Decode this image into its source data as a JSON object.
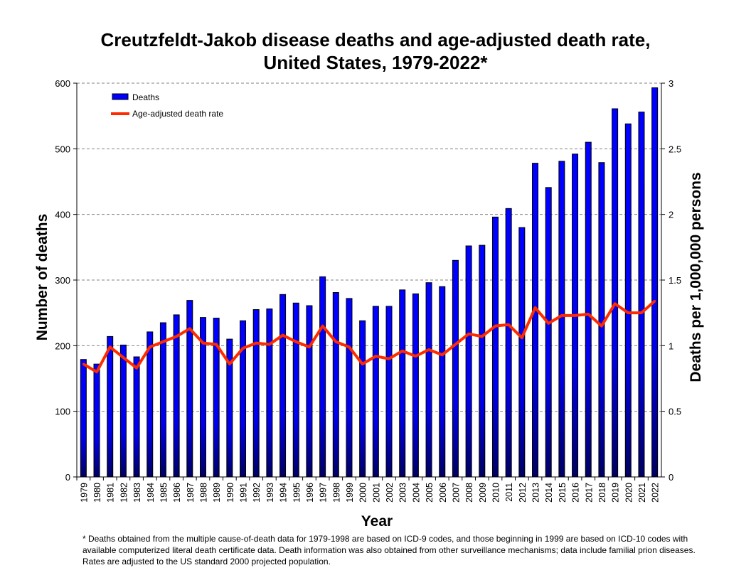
{
  "chart_data": {
    "type": "bar+line",
    "title_line1": "Creutzfeldt-Jakob disease deaths and age-adjusted death rate,",
    "title_line2": "United States, 1979-2022*",
    "xlabel": "Year",
    "ylabel": "Number of deaths",
    "y2label": "Deaths per 1,000,000 persons",
    "ylim": [
      0,
      600
    ],
    "y2lim": [
      0,
      3
    ],
    "yticks": [
      "0",
      "100",
      "200",
      "300",
      "400",
      "500",
      "600"
    ],
    "y2ticks": [
      "0",
      "0.5",
      "1",
      "1.5",
      "2",
      "2.5",
      "3"
    ],
    "grid": true,
    "legend_position": "top-left",
    "categories": [
      "1979",
      "1980",
      "1981",
      "1982",
      "1983",
      "1984",
      "1985",
      "1986",
      "1987",
      "1988",
      "1989",
      "1990",
      "1991",
      "1992",
      "1993",
      "1994",
      "1995",
      "1996",
      "1997",
      "1998",
      "1999",
      "2000",
      "2001",
      "2002",
      "2003",
      "2004",
      "2005",
      "2006",
      "2007",
      "2008",
      "2009",
      "2010",
      "2011",
      "2012",
      "2013",
      "2014",
      "2015",
      "2016",
      "2017",
      "2018",
      "2019",
      "2020",
      "2021",
      "2022"
    ],
    "series": [
      {
        "name": "Deaths",
        "type": "bar",
        "axis": "left",
        "color": "#0000ff",
        "values": [
          179,
          172,
          214,
          201,
          183,
          221,
          235,
          247,
          269,
          243,
          242,
          210,
          238,
          255,
          256,
          278,
          265,
          261,
          305,
          281,
          272,
          238,
          260,
          260,
          285,
          279,
          296,
          290,
          330,
          352,
          353,
          396,
          409,
          380,
          478,
          441,
          481,
          492,
          510,
          479,
          561,
          538,
          556,
          593
        ]
      },
      {
        "name": "Age-adjusted death rate",
        "type": "line",
        "axis": "right",
        "color": "#ff2a00",
        "values": [
          0.86,
          0.8,
          0.99,
          0.91,
          0.83,
          0.99,
          1.03,
          1.07,
          1.13,
          1.02,
          1.01,
          0.86,
          0.98,
          1.02,
          1.01,
          1.08,
          1.03,
          0.99,
          1.15,
          1.03,
          0.99,
          0.86,
          0.92,
          0.9,
          0.96,
          0.92,
          0.97,
          0.93,
          1.01,
          1.09,
          1.07,
          1.15,
          1.16,
          1.06,
          1.29,
          1.17,
          1.23,
          1.23,
          1.24,
          1.15,
          1.32,
          1.25,
          1.25,
          1.34
        ]
      }
    ]
  },
  "footnote": "* Deaths obtained from the multiple cause-of-death  data for 1979-1998  are based on ICD-9 codes, and those beginning in 1999 are based on ICD-10 codes with available  computerized literal death certificate data.  Death information was also obtained from other surveillance  mechanisms; data include familial prion diseases. Rates are adjusted to the US standard 2000 projected population."
}
